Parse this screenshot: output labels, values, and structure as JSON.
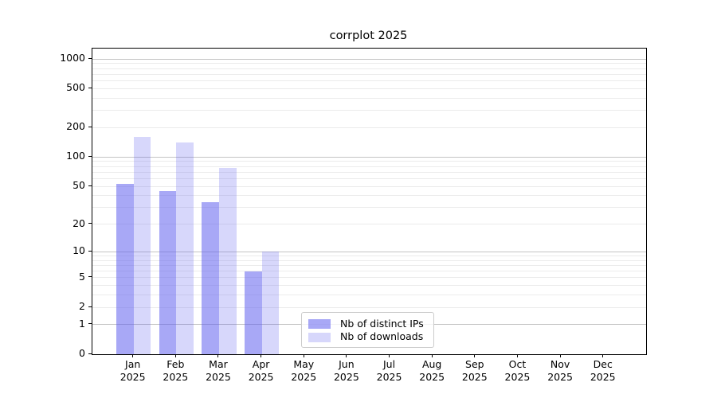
{
  "chart_data": {
    "type": "bar",
    "title": "corrplot 2025",
    "scale": "log1p",
    "categories": [
      "Jan",
      "Feb",
      "Mar",
      "Apr",
      "May",
      "Jun",
      "Jul",
      "Aug",
      "Sep",
      "Oct",
      "Nov",
      "Dec"
    ],
    "x_year_label": "2025",
    "series": [
      {
        "name": "Nb of distinct IPs",
        "color": "rgba(97,97,239,0.55)",
        "values": [
          53,
          45,
          34,
          6,
          0,
          0,
          0,
          0,
          0,
          0,
          0,
          0
        ]
      },
      {
        "name": "Nb of downloads",
        "color": "rgba(97,97,239,0.25)",
        "values": [
          160,
          140,
          78,
          10,
          0,
          0,
          0,
          0,
          0,
          0,
          0,
          0
        ]
      }
    ],
    "y_ticks": [
      0,
      1,
      2,
      5,
      10,
      20,
      50,
      100,
      200,
      500,
      1000
    ],
    "ylim": [
      0,
      1000
    ],
    "grid": true,
    "legend_position": "lower-center",
    "colors": {
      "major_grid": "#c3c3c3",
      "minor_grid": "#ebebeb",
      "spine": "#000000",
      "text": "#000000"
    }
  }
}
